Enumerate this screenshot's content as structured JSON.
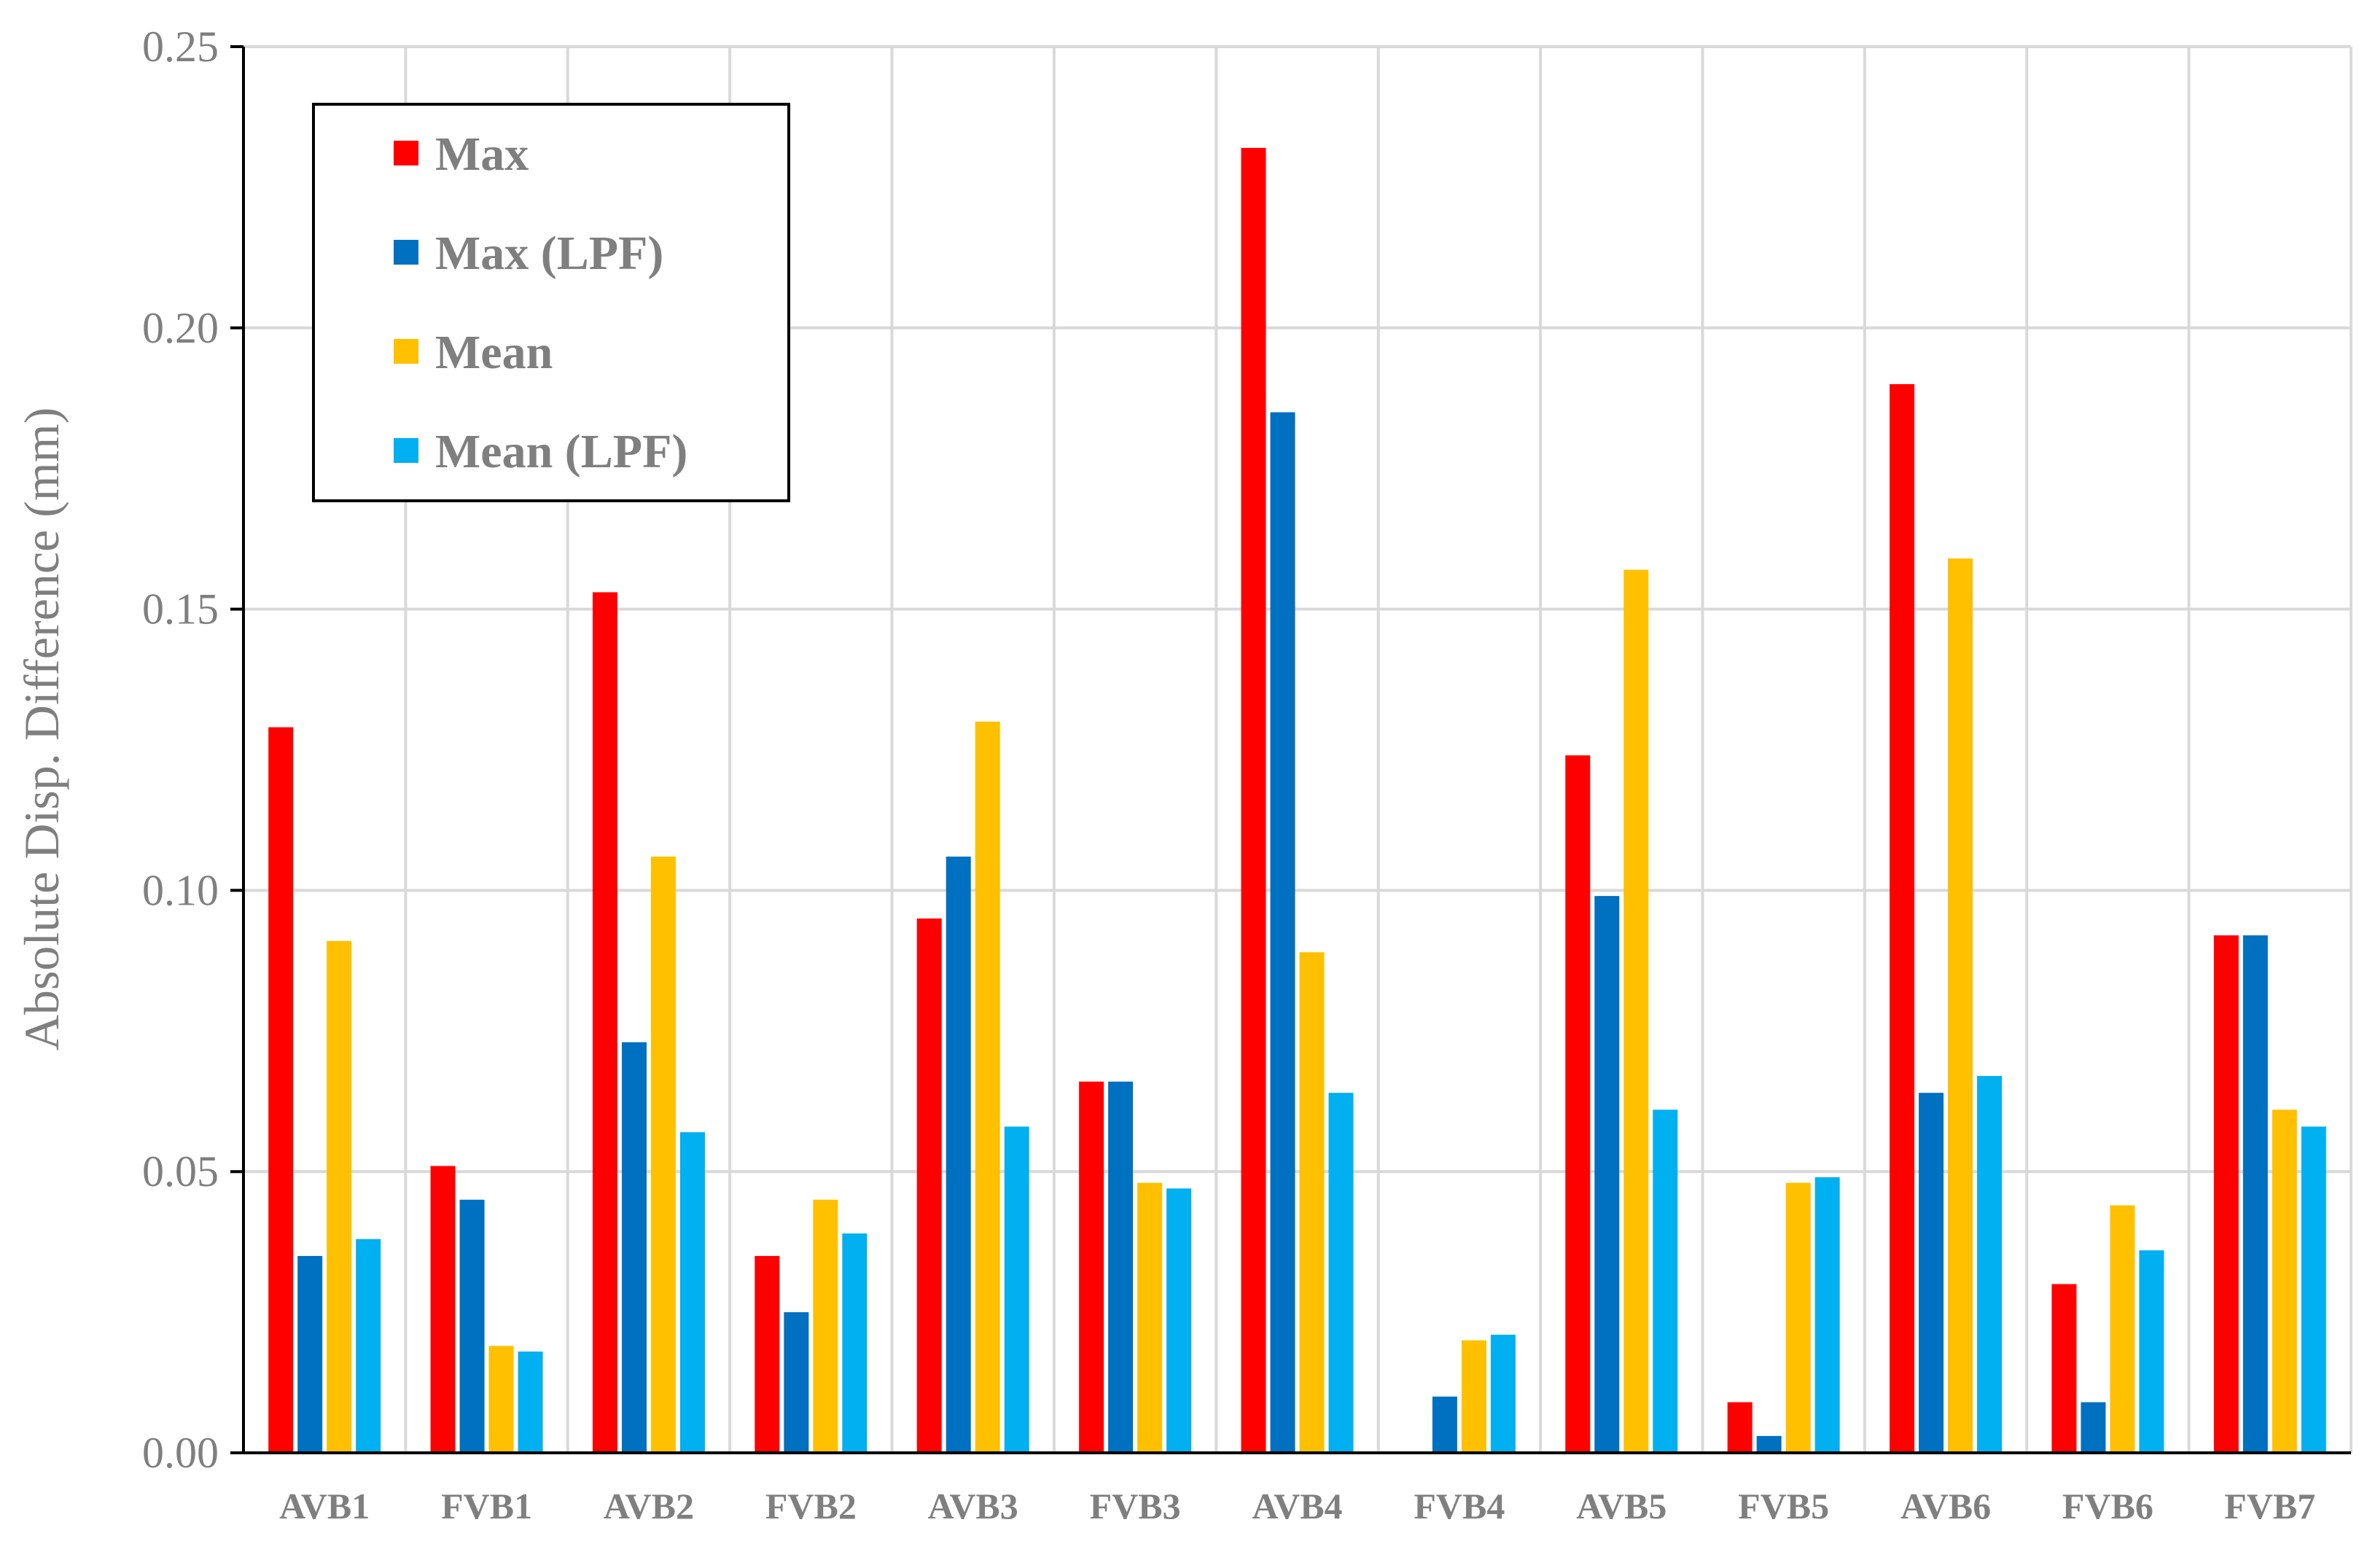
{
  "chart_data": {
    "type": "bar",
    "title": "",
    "xlabel": "",
    "ylabel": "Absolute Disp. Difference (mm)",
    "ylim": [
      0,
      0.25
    ],
    "yticks": [
      "0.00",
      "0.05",
      "0.10",
      "0.15",
      "0.20",
      "0.25"
    ],
    "grid": true,
    "legend_position": "top-left",
    "categories": [
      "AVB1",
      "FVB1",
      "AVB2",
      "FVB2",
      "AVB3",
      "FVB3",
      "AVB4",
      "FVB4",
      "AVB5",
      "FVB5",
      "AVB6",
      "FVB6",
      "FVB7"
    ],
    "series": [
      {
        "name": "Max",
        "color": "#ff0000",
        "values": [
          0.129,
          0.051,
          0.153,
          0.035,
          0.095,
          0.066,
          0.232,
          0.0,
          0.124,
          0.009,
          0.19,
          0.03,
          0.092
        ]
      },
      {
        "name": "Max (LPF)",
        "color": "#0070c0",
        "values": [
          0.035,
          0.045,
          0.073,
          0.025,
          0.106,
          0.066,
          0.185,
          0.01,
          0.099,
          0.003,
          0.064,
          0.009,
          0.092
        ]
      },
      {
        "name": "Mean",
        "color": "#ffc000",
        "values": [
          0.091,
          0.019,
          0.106,
          0.045,
          0.13,
          0.048,
          0.089,
          0.02,
          0.157,
          0.048,
          0.159,
          0.044,
          0.061
        ]
      },
      {
        "name": "Mean (LPF)",
        "color": "#00b0f0",
        "values": [
          0.038,
          0.018,
          0.057,
          0.039,
          0.058,
          0.047,
          0.064,
          0.021,
          0.061,
          0.049,
          0.067,
          0.036,
          0.058
        ]
      }
    ]
  }
}
